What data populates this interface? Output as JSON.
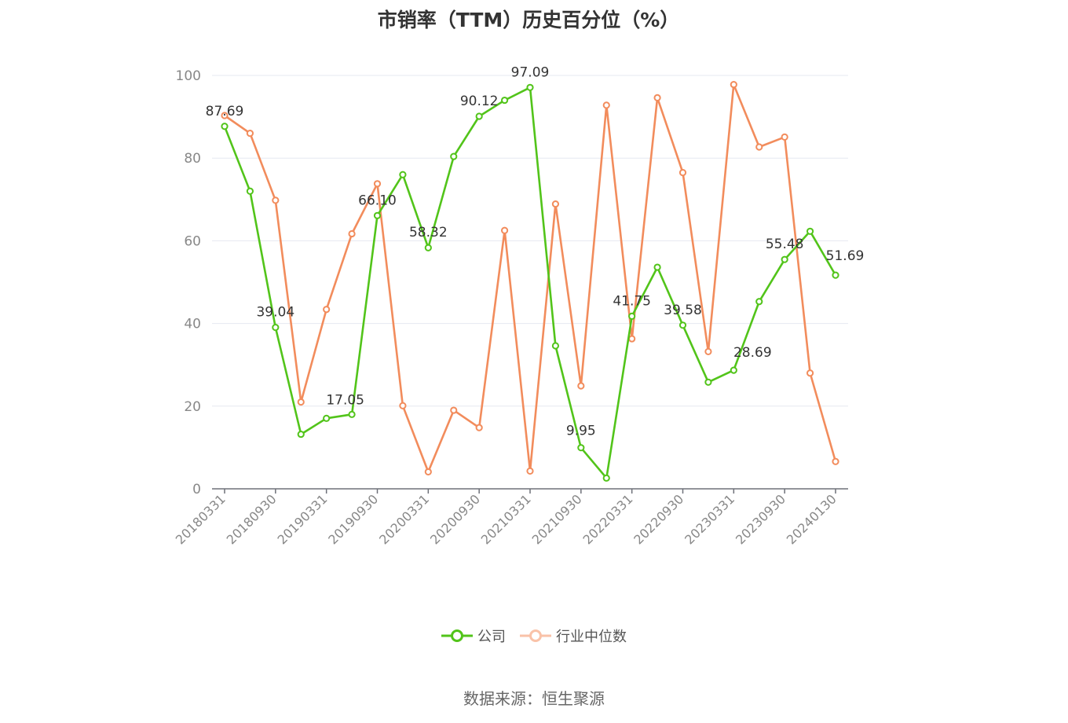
{
  "title": "市销率（TTM）历史百分位（%）",
  "source": "数据来源：恒生聚源",
  "chart_data": {
    "type": "line",
    "title": "市销率（TTM）历史百分位（%）",
    "ylim": [
      0,
      100
    ],
    "y_ticks": [
      0,
      20,
      40,
      60,
      80,
      100
    ],
    "grid": true,
    "legend_position": "bottom-center",
    "x": [
      "20180331",
      "20180630",
      "20180930",
      "20181231",
      "20190331",
      "20190630",
      "20190930",
      "20191231",
      "20200331",
      "20200630",
      "20200930",
      "20201231",
      "20210331",
      "20210630",
      "20210930",
      "20211231",
      "20220331",
      "20220630",
      "20220930",
      "20221231",
      "20230331",
      "20230630",
      "20230930",
      "20231231",
      "20240130"
    ],
    "x_tick_labels": [
      "20180331",
      "20180930",
      "20190331",
      "20190930",
      "20200331",
      "20200930",
      "20210331",
      "20210930",
      "20220331",
      "20220930",
      "20230331",
      "20230930",
      "20240130"
    ],
    "series": [
      {
        "name": "公司",
        "color": "#52c41a",
        "values": [
          87.69,
          72.0,
          39.04,
          13.2,
          17.05,
          18.0,
          66.1,
          76.0,
          58.32,
          80.4,
          90.12,
          94.0,
          97.09,
          34.6,
          9.95,
          2.6,
          41.75,
          53.6,
          39.58,
          25.8,
          28.69,
          45.3,
          55.48,
          62.3,
          51.69
        ],
        "labels": [
          "87.69",
          "",
          "39.04",
          "",
          "17.05",
          "",
          "66.10",
          "",
          "58.32",
          "",
          "90.12",
          "",
          "97.09",
          "",
          "9.95",
          "",
          "41.75",
          "",
          "39.58",
          "",
          "28.69",
          "",
          "55.48",
          "",
          "51.69"
        ]
      },
      {
        "name": "行业中位数",
        "color": "#f28c5c",
        "values": [
          90.3,
          86.0,
          69.8,
          21.0,
          43.4,
          61.7,
          73.8,
          20.1,
          4.1,
          19.0,
          14.8,
          62.5,
          4.3,
          68.9,
          24.9,
          92.8,
          36.3,
          94.6,
          76.5,
          33.2,
          97.8,
          82.7,
          85.1,
          28.0,
          6.6
        ]
      }
    ]
  }
}
